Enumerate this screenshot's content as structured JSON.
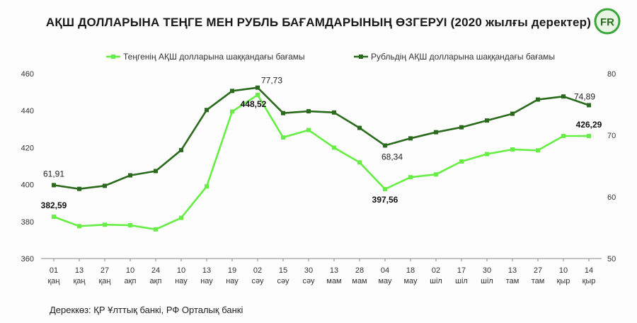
{
  "title": "АҚШ ДОЛЛАРЫНА ТЕҢГЕ МЕН РУБЛЬ БАҒАМДАРЫНЫҢ ӨЗГЕРУІ (2020 жылғы деректер)",
  "source": "Дереккөз: ҚР Ұлттық банкі, РФ Орталық банкі",
  "logo_text": "FR",
  "colors": {
    "tenge": "#66ee44",
    "rubl": "#2a6a1c",
    "logo_ring": "#3aa63a"
  },
  "chart_data": {
    "type": "line",
    "x": [
      {
        "day": "01",
        "month": "қаң"
      },
      {
        "day": "13",
        "month": "қаң"
      },
      {
        "day": "27",
        "month": "қаң"
      },
      {
        "day": "10",
        "month": "ақп"
      },
      {
        "day": "24",
        "month": "ақп"
      },
      {
        "day": "10",
        "month": "нау"
      },
      {
        "day": "13",
        "month": "нау"
      },
      {
        "day": "19",
        "month": "нау"
      },
      {
        "day": "02",
        "month": "сәу"
      },
      {
        "day": "15",
        "month": "сәу"
      },
      {
        "day": "30",
        "month": "сәу"
      },
      {
        "day": "13",
        "month": "мам"
      },
      {
        "day": "28",
        "month": "мам"
      },
      {
        "day": "04",
        "month": "мау"
      },
      {
        "day": "18",
        "month": "мау"
      },
      {
        "day": "02",
        "month": "шіл"
      },
      {
        "day": "17",
        "month": "шіл"
      },
      {
        "day": "30",
        "month": "шіл"
      },
      {
        "day": "13",
        "month": "там"
      },
      {
        "day": "27",
        "month": "там"
      },
      {
        "day": "10",
        "month": "қыр"
      },
      {
        "day": "14",
        "month": "қыр"
      }
    ],
    "left_axis": {
      "ylim": [
        360,
        460
      ],
      "ticks": [
        "460",
        "440",
        "420",
        "400",
        "380",
        "360"
      ]
    },
    "right_axis": {
      "ylim": [
        50,
        80
      ],
      "ticks": [
        "80",
        "70",
        "60",
        "50"
      ]
    },
    "legend_position": "top-center",
    "series": [
      {
        "name": "Теңгенің АҚШ долларына шаққандағы бағамы",
        "axis": "left",
        "color": "#66ee44",
        "values": [
          382.59,
          377.5,
          378.3,
          378.0,
          375.8,
          382.0,
          399.0,
          439.5,
          448.52,
          425.5,
          429.5,
          420.0,
          412.0,
          397.56,
          404.0,
          405.5,
          412.5,
          416.5,
          419.0,
          418.5,
          426.29,
          426.29
        ],
        "labels": [
          {
            "index": 0,
            "text": "382,59"
          },
          {
            "index": 8,
            "text": "448,52"
          },
          {
            "index": 13,
            "text": "397,56"
          },
          {
            "index": 21,
            "text": "426,29"
          }
        ]
      },
      {
        "name": "Рубльдің АҚШ долларына шаққандағы бағамы",
        "axis": "right",
        "color": "#2a6a1c",
        "values": [
          61.91,
          61.3,
          61.8,
          63.5,
          64.2,
          67.6,
          74.1,
          77.2,
          77.73,
          73.6,
          73.9,
          73.7,
          71.2,
          68.34,
          69.5,
          70.5,
          71.3,
          72.4,
          73.5,
          75.8,
          76.3,
          74.89
        ],
        "labels": [
          {
            "index": 0,
            "text": "61,91"
          },
          {
            "index": 8,
            "text": "77,73"
          },
          {
            "index": 13,
            "text": "68,34"
          },
          {
            "index": 21,
            "text": "74,89"
          }
        ]
      }
    ]
  }
}
